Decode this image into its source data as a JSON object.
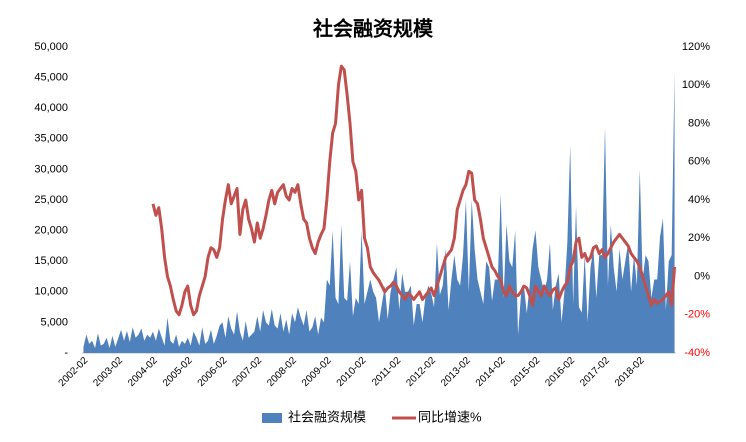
{
  "chart_data": {
    "type": "area_line",
    "title": "社会融资规模",
    "categories": [
      null,
      "2002-02",
      null,
      null,
      null,
      null,
      null,
      null,
      null,
      null,
      null,
      null,
      null,
      "2003-02",
      null,
      null,
      null,
      null,
      null,
      null,
      null,
      null,
      null,
      null,
      null,
      "2004-02",
      null,
      null,
      null,
      null,
      null,
      null,
      null,
      null,
      null,
      null,
      null,
      "2005-02",
      null,
      null,
      null,
      null,
      null,
      null,
      null,
      null,
      null,
      null,
      null,
      "2006-02",
      null,
      null,
      null,
      null,
      null,
      null,
      null,
      null,
      null,
      null,
      null,
      "2007-02",
      null,
      null,
      null,
      null,
      null,
      null,
      null,
      null,
      null,
      null,
      null,
      "2008-02",
      null,
      null,
      null,
      null,
      null,
      null,
      null,
      null,
      null,
      null,
      null,
      "2009-02",
      null,
      null,
      null,
      null,
      null,
      null,
      null,
      null,
      null,
      null,
      null,
      "2010-02",
      null,
      null,
      null,
      null,
      null,
      null,
      null,
      null,
      null,
      null,
      null,
      "2011-02",
      null,
      null,
      null,
      null,
      null,
      null,
      null,
      null,
      null,
      null,
      null,
      "2012-02",
      null,
      null,
      null,
      null,
      null,
      null,
      null,
      null,
      null,
      null,
      null,
      "2013-02",
      null,
      null,
      null,
      null,
      null,
      null,
      null,
      null,
      null,
      null,
      null,
      "2014-02",
      null,
      null,
      null,
      null,
      null,
      null,
      null,
      null,
      null,
      null,
      null,
      "2015-02",
      null,
      null,
      null,
      null,
      null,
      null,
      null,
      null,
      null,
      null,
      null,
      "2016-02",
      null,
      null,
      null,
      null,
      null,
      null,
      null,
      null,
      null,
      null,
      null,
      "2017-02",
      null,
      null,
      null,
      null,
      null,
      null,
      null,
      null,
      null,
      null,
      null,
      "2018-02",
      null,
      null,
      null,
      null,
      null,
      null,
      null,
      null,
      null,
      null,
      null
    ],
    "series": [
      {
        "name": "社会融资规模",
        "kind": "area",
        "color": "#4f81bd",
        "values": [
          1000,
          3000,
          1500,
          2000,
          800,
          3200,
          1200,
          1500,
          2500,
          800,
          2800,
          1000,
          2400,
          3800,
          2000,
          3600,
          1800,
          4200,
          2500,
          3000,
          4000,
          2000,
          3000,
          2500,
          3500,
          2000,
          4000,
          2600,
          1200,
          5800,
          2000,
          1500,
          3000,
          1000,
          2000,
          1500,
          2500,
          1200,
          3500,
          2500,
          1200,
          4200,
          1500,
          2000,
          3800,
          1500,
          2800,
          4500,
          5000,
          2500,
          6000,
          4000,
          3000,
          6800,
          3500,
          2000,
          5200,
          2500,
          3000,
          3500,
          6000,
          3500,
          7000,
          5000,
          4500,
          7200,
          4500,
          4000,
          6500,
          3500,
          5500,
          3000,
          6500,
          5000,
          7500,
          5800,
          4500,
          7000,
          3500,
          4200,
          6000,
          3000,
          5800,
          5000,
          12000,
          11000,
          20000,
          9000,
          8000,
          21000,
          9000,
          8500,
          15000,
          6000,
          9000,
          8000,
          20000,
          8000,
          10000,
          12000,
          10000,
          9000,
          5000,
          8000,
          11000,
          5500,
          10000,
          12000,
          14000,
          7000,
          13000,
          10000,
          10000,
          11000,
          4500,
          8000,
          8000,
          5000,
          9000,
          11000,
          9800,
          7500,
          18000,
          9500,
          11000,
          17000,
          7000,
          12000,
          16000,
          12000,
          11000,
          16000,
          25000,
          10000,
          25000,
          17000,
          12000,
          10000,
          8000,
          15000,
          14000,
          8500,
          12000,
          12000,
          26000,
          9000,
          21000,
          15000,
          14000,
          20000,
          3000,
          9500,
          11000,
          6500,
          11000,
          17000,
          20000,
          14000,
          12000,
          10000,
          12000,
          18000,
          7000,
          11000,
          13000,
          5000,
          10000,
          18000,
          34000,
          8000,
          24000,
          7500,
          6600,
          16000,
          5000,
          14000,
          17000,
          9000,
          16000,
          16000,
          37000,
          11000,
          21000,
          14000,
          10000,
          17000,
          12000,
          15000,
          18000,
          10000,
          16000,
          11000,
          30000,
          12000,
          16000,
          15000,
          9000,
          12000,
          12000,
          19000,
          22000,
          7000,
          15000,
          16000,
          46000
        ]
      },
      {
        "name": "同比增速%",
        "kind": "line",
        "axis": "y2",
        "color": "#c0504d",
        "values": [
          null,
          null,
          null,
          null,
          null,
          null,
          null,
          null,
          null,
          null,
          null,
          null,
          null,
          null,
          null,
          null,
          null,
          null,
          null,
          null,
          null,
          null,
          null,
          null,
          38,
          32,
          36,
          25,
          10,
          0,
          -5,
          -12,
          -18,
          -20,
          -15,
          -8,
          -5,
          -15,
          -20,
          -18,
          -10,
          -5,
          0,
          10,
          15,
          14,
          10,
          15,
          30,
          40,
          48,
          38,
          42,
          46,
          22,
          35,
          40,
          30,
          25,
          18,
          28,
          20,
          25,
          32,
          40,
          45,
          38,
          44,
          46,
          48,
          42,
          40,
          46,
          44,
          48,
          38,
          30,
          28,
          20,
          15,
          12,
          18,
          22,
          25,
          40,
          60,
          75,
          80,
          100,
          110,
          108,
          95,
          80,
          60,
          55,
          40,
          45,
          20,
          15,
          5,
          2,
          0,
          -2,
          -5,
          -8,
          -6,
          -5,
          -3,
          -5,
          -8,
          -10,
          -12,
          -9,
          -10,
          -12,
          -10,
          -8,
          -12,
          -10,
          -8,
          -6,
          -10,
          -5,
          0,
          5,
          10,
          12,
          14,
          20,
          35,
          40,
          45,
          48,
          55,
          54,
          40,
          38,
          30,
          20,
          15,
          10,
          5,
          3,
          0,
          -2,
          -8,
          -10,
          -5,
          -8,
          -10,
          -10,
          -8,
          -5,
          -6,
          -10,
          -15,
          -5,
          -8,
          -10,
          -5,
          -8,
          -10,
          -7,
          -6,
          -12,
          -8,
          -5,
          -3,
          5,
          8,
          18,
          20,
          10,
          12,
          8,
          10,
          15,
          16,
          12,
          14,
          10,
          12,
          15,
          18,
          20,
          22,
          20,
          18,
          16,
          12,
          10,
          8,
          5,
          0,
          -5,
          -10,
          -15,
          -12,
          -14,
          -13,
          -12,
          -10,
          -8,
          -15,
          5
        ]
      }
    ],
    "ylim": [
      0,
      50000
    ],
    "yticks": [
      {
        "value": 0,
        "label": "-"
      },
      {
        "value": 5000,
        "label": "5,000"
      },
      {
        "value": 10000,
        "label": "10,000"
      },
      {
        "value": 15000,
        "label": "15,000"
      },
      {
        "value": 20000,
        "label": "20,000"
      },
      {
        "value": 25000,
        "label": "25,000"
      },
      {
        "value": 30000,
        "label": "30,000"
      },
      {
        "value": 35000,
        "label": "35,000"
      },
      {
        "value": 40000,
        "label": "40,000"
      },
      {
        "value": 45000,
        "label": "45,000"
      },
      {
        "value": 50000,
        "label": "50,000"
      }
    ],
    "y2lim": [
      -40,
      120
    ],
    "y2ticks": [
      {
        "value": -40,
        "label": "-40%"
      },
      {
        "value": -20,
        "label": "-20%"
      },
      {
        "value": 0,
        "label": "0%"
      },
      {
        "value": 20,
        "label": "20%"
      },
      {
        "value": 40,
        "label": "40%"
      },
      {
        "value": 60,
        "label": "60%"
      },
      {
        "value": 80,
        "label": "80%"
      },
      {
        "value": 100,
        "label": "100%"
      },
      {
        "value": 120,
        "label": "120%"
      }
    ],
    "y2_negative_color": "#ff0000",
    "legend": "bottom"
  }
}
